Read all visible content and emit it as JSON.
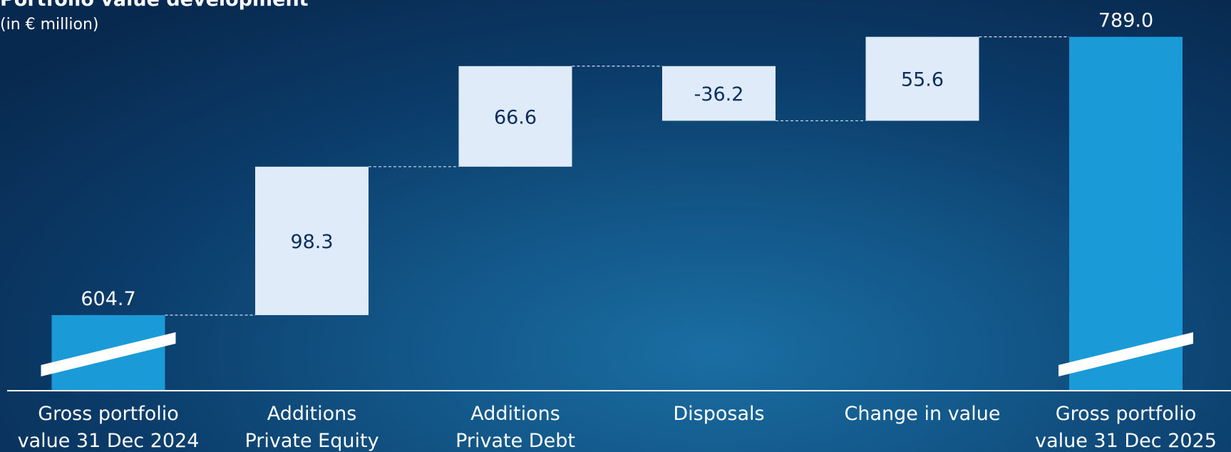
{
  "title": "Portfolio value development",
  "subtitle": "(in € million)",
  "colors": {
    "total_bar": "#1b9ad8",
    "step_bar": "#dfebf9",
    "step_text": "#0a2d5e",
    "total_text": "#ffffff",
    "axis": "#ffffff",
    "connector": "#cfe0f2"
  },
  "chart_data": {
    "type": "bar",
    "subtype": "waterfall",
    "title": "Portfolio value development",
    "subtitle": "(in € million)",
    "axis_break": true,
    "categories": [
      [
        "Gross portfolio",
        "value 31 Dec 2024"
      ],
      [
        "Additions",
        "Private Equity"
      ],
      [
        "Additions",
        "Private Debt"
      ],
      [
        "Disposals"
      ],
      [
        "Change in value"
      ],
      [
        "Gross portfolio",
        "value 31 Dec 2025"
      ]
    ],
    "values": [
      604.7,
      98.3,
      66.6,
      -36.2,
      55.6,
      789.0
    ],
    "labels": [
      "604.7",
      "98.3",
      "66.6",
      "-36.2",
      "55.6",
      "789.0"
    ],
    "kinds": [
      "total",
      "step",
      "step",
      "step",
      "step",
      "total"
    ],
    "legend": "none",
    "grid": false
  }
}
